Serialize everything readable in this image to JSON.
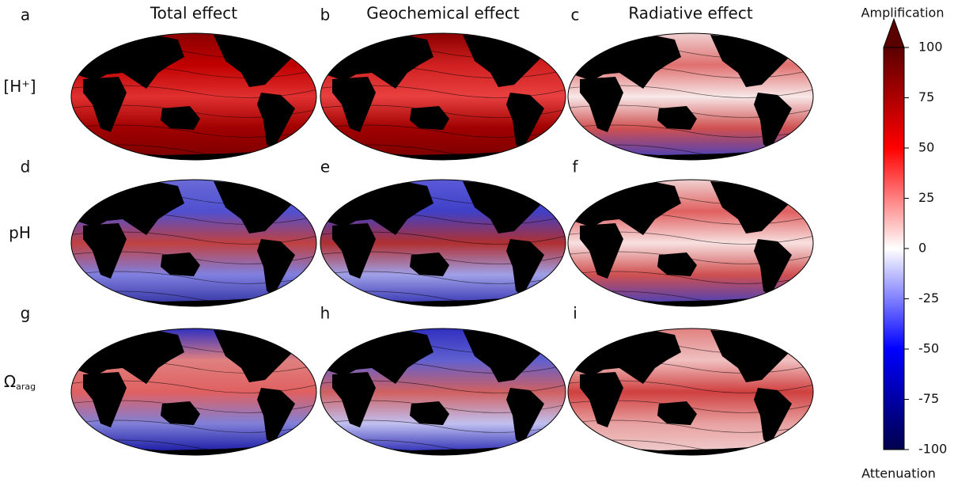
{
  "column_titles": [
    "Total effect",
    "Geochemical effect",
    "Radiative effect"
  ],
  "panel_labels": [
    "a",
    "b",
    "c",
    "d",
    "e",
    "f",
    "g",
    "h",
    "i"
  ],
  "row_labels": [
    {
      "text": "[H⁺]"
    },
    {
      "text": "pH"
    },
    {
      "text": "Ω",
      "subscript": "arag"
    }
  ],
  "colorbar": {
    "lim": [
      -100,
      100
    ],
    "ticks": [
      100,
      75,
      50,
      25,
      0,
      -25,
      -50,
      -75,
      -100
    ],
    "top_label": "Amplification",
    "bottom_label": "Attenuation",
    "colors": [
      "#00004c",
      "#0000ff",
      "#ffffff",
      "#ff0000",
      "#5a0000"
    ],
    "extend": "max"
  }
}
